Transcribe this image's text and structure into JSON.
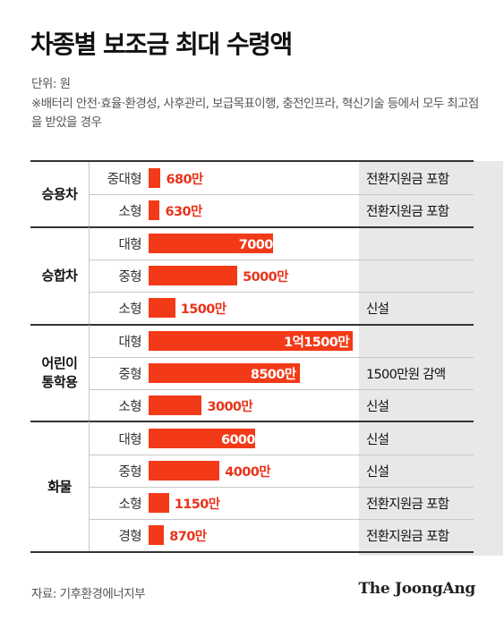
{
  "title": "차종별 보조금 최대 수령액",
  "unit": "단위: 원",
  "note": "※배터리 안전·효율·환경성, 사후관리, 보급목표이행, 충전인프라, 혁신기술 등에서 모두 최고점을 받았을 경우",
  "source": "자료: 기후환경에너지부",
  "logo": "The JoongAng",
  "colors": {
    "bar": "#f33a18",
    "label": "#e8341a",
    "note_bg": "#e8e8e8"
  },
  "chart_data": {
    "type": "bar",
    "orientation": "horizontal",
    "unit": "만원",
    "groups": [
      {
        "name": "승용차",
        "rows": [
          {
            "label": "중대형",
            "value": 680,
            "value_label": "680만",
            "note": "전환지원금 포함"
          },
          {
            "label": "소형",
            "value": 630,
            "value_label": "630만",
            "note": "전환지원금 포함"
          }
        ]
      },
      {
        "name": "승합차",
        "rows": [
          {
            "label": "대형",
            "value": 7000,
            "value_label": "7000만",
            "note": ""
          },
          {
            "label": "중형",
            "value": 5000,
            "value_label": "5000만",
            "note": ""
          },
          {
            "label": "소형",
            "value": 1500,
            "value_label": "1500만",
            "note": "신설"
          }
        ]
      },
      {
        "name": "어린이 통학용",
        "rows": [
          {
            "label": "대형",
            "value": 11500,
            "value_label": "1억1500만",
            "note": ""
          },
          {
            "label": "중형",
            "value": 8500,
            "value_label": "8500만",
            "note": "1500만원 감액"
          },
          {
            "label": "소형",
            "value": 3000,
            "value_label": "3000만",
            "note": "신설"
          }
        ]
      },
      {
        "name": "화물",
        "rows": [
          {
            "label": "대형",
            "value": 6000,
            "value_label": "6000만",
            "note": "신설"
          },
          {
            "label": "중형",
            "value": 4000,
            "value_label": "4000만",
            "note": "신설"
          },
          {
            "label": "소형",
            "value": 1150,
            "value_label": "1150만",
            "note": "전환지원금 포함"
          },
          {
            "label": "경형",
            "value": 870,
            "value_label": "870만",
            "note": "전환지원금 포함"
          }
        ]
      }
    ]
  }
}
